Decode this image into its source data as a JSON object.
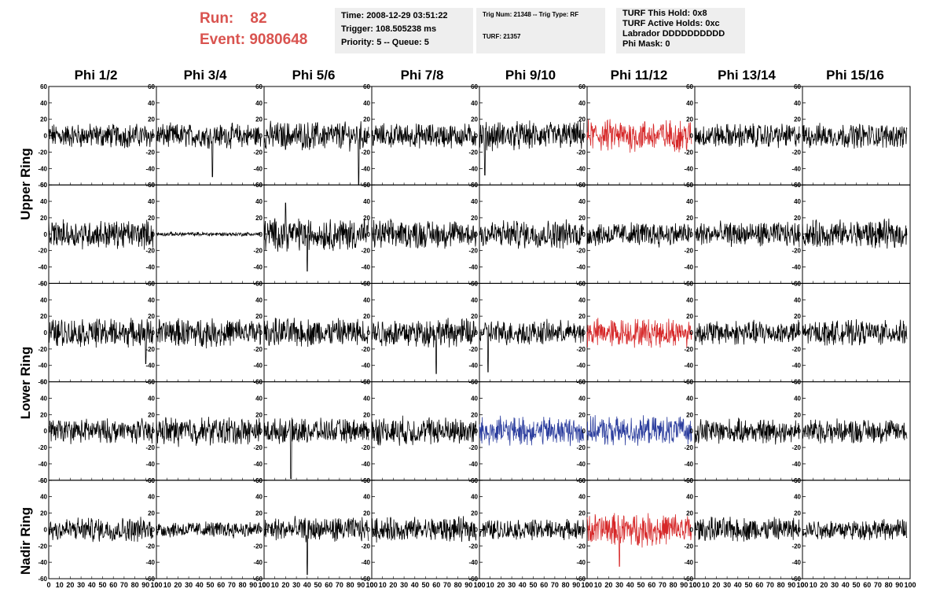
{
  "header": {
    "run_label": "Run:",
    "run_value": "82",
    "event_label": "Event:",
    "event_value": "9080648"
  },
  "info_box_1": {
    "time": "Time: 2008-12-29 03:51:22",
    "trigger": "Trigger: 108.505238 ms",
    "priority": "Priority: 5 -- Queue: 5"
  },
  "info_box_2": {
    "trig": "Trig Num: 21348 -- Trig Type: RF",
    "turf": "TURF: 21357"
  },
  "info_box_3": {
    "this_hold": "TURF This Hold: 0x8",
    "active_holds": "TURF Active Holds: 0xc",
    "labrador": "Labrador DDDDDDDDDD",
    "phi_mask": "Phi Mask: 0"
  },
  "row_labels": [
    "Upper Ring",
    "Lower Ring",
    "Nadir Ring"
  ],
  "chart_data": {
    "type": "line",
    "columns": [
      "Phi 1/2",
      "Phi 3/4",
      "Phi 5/6",
      "Phi 7/8",
      "Phi 9/10",
      "Phi 11/12",
      "Phi 13/14",
      "Phi 15/16"
    ],
    "rows": 5,
    "x_range": [
      0,
      100
    ],
    "y_range": [
      -60,
      60
    ],
    "x_ticks": [
      0,
      10,
      20,
      30,
      40,
      50,
      60,
      70,
      80,
      90,
      100
    ],
    "y_ticks": [
      -60,
      -40,
      -20,
      0,
      20,
      40,
      60
    ],
    "x_tick_labels": [
      "0",
      "10",
      "20",
      "30",
      "40",
      "50",
      "60",
      "70",
      "80",
      "90",
      "100"
    ],
    "y_tick_labels": [
      "-60",
      "-40",
      "-20",
      "0",
      "20",
      "40",
      "60"
    ],
    "colors": {
      "default": "#000000",
      "red": "#d62728",
      "blue": "#2c3e9e"
    },
    "trace_colors": [
      [
        "default",
        "default",
        "default",
        "default",
        "default",
        "red",
        "default",
        "default"
      ],
      [
        "default",
        "default",
        "default",
        "default",
        "default",
        "default",
        "default",
        "default"
      ],
      [
        "default",
        "default",
        "default",
        "default",
        "default",
        "red",
        "default",
        "default"
      ],
      [
        "default",
        "default",
        "default",
        "default",
        "blue",
        "blue",
        "default",
        "default"
      ],
      [
        "default",
        "default",
        "default",
        "default",
        "default",
        "red",
        "default",
        "default"
      ]
    ],
    "amplitudes": [
      [
        12,
        12,
        14,
        12,
        14,
        16,
        12,
        12
      ],
      [
        14,
        2,
        16,
        14,
        14,
        12,
        12,
        14
      ],
      [
        14,
        14,
        14,
        14,
        12,
        14,
        12,
        12
      ],
      [
        12,
        14,
        12,
        14,
        14,
        14,
        12,
        12
      ],
      [
        12,
        8,
        12,
        12,
        10,
        16,
        12,
        10
      ]
    ],
    "spikes": [
      [
        [],
        [
          [
            52,
            -50
          ]
        ],
        [
          [
            88,
            -60
          ]
        ],
        [],
        [
          [
            5,
            -48
          ]
        ],
        [],
        [],
        []
      ],
      [
        [],
        [],
        [
          [
            20,
            38
          ],
          [
            40,
            -45
          ]
        ],
        [],
        [],
        [],
        [],
        []
      ],
      [
        [
          [
            90,
            -38
          ]
        ],
        [],
        [],
        [
          [
            60,
            -50
          ]
        ],
        [
          [
            8,
            -48
          ]
        ],
        [],
        [],
        []
      ],
      [
        [],
        [],
        [
          [
            25,
            -58
          ]
        ],
        [],
        [],
        [],
        [],
        []
      ],
      [
        [],
        [],
        [
          [
            40,
            -55
          ]
        ],
        [],
        [],
        [
          [
            30,
            -45
          ]
        ],
        [],
        []
      ]
    ]
  }
}
